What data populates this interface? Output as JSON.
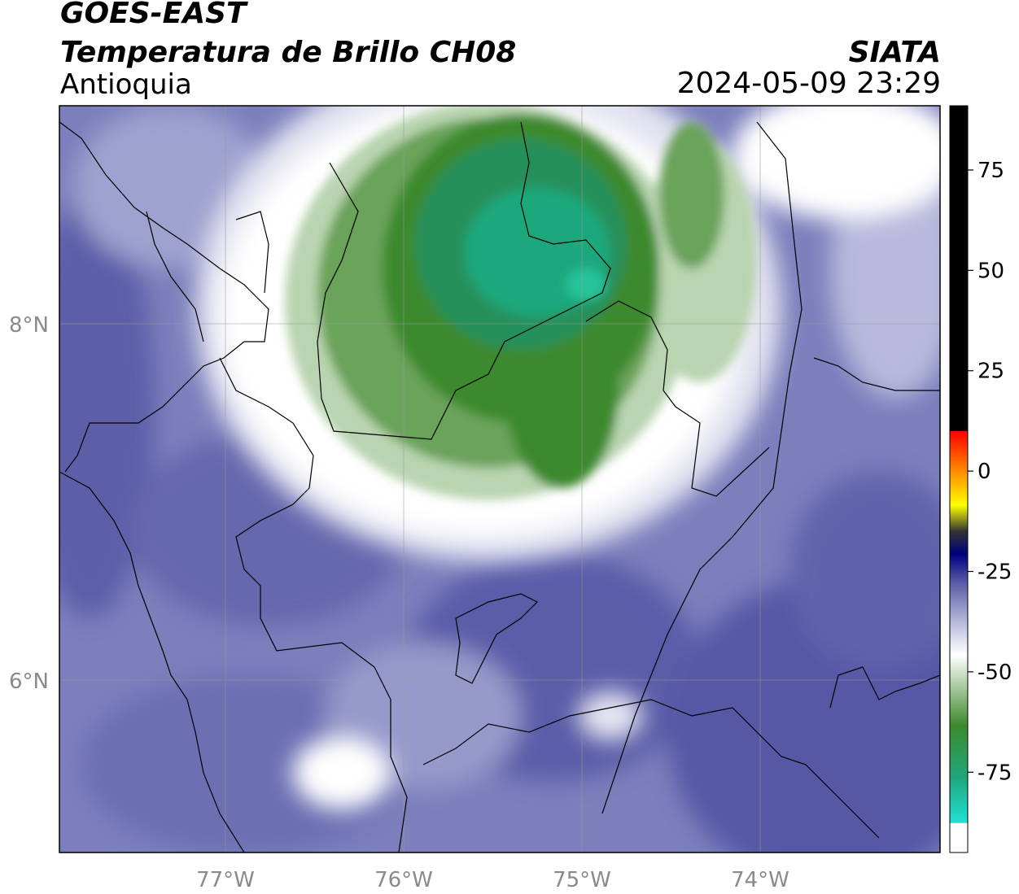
{
  "header": {
    "satellite": "GOES-EAST",
    "product": "Temperatura de Brillo CH08",
    "region": "Antioquia",
    "organization": "SIATA",
    "timestamp": "2024-05-09 23:29"
  },
  "map": {
    "lon_range": [
      -77.95,
      -73.05
    ],
    "lat_range": [
      5.05,
      9.25
    ],
    "lon_ticks": [
      {
        "value": -77,
        "label": "77°W"
      },
      {
        "value": -76,
        "label": "76°W"
      },
      {
        "value": -75,
        "label": "75°W"
      },
      {
        "value": -74,
        "label": "74°W"
      }
    ],
    "lat_ticks": [
      {
        "value": 8,
        "label": "8°N"
      },
      {
        "value": 6,
        "label": "6°N"
      }
    ],
    "gridlines": true
  },
  "colorbar": {
    "range": [
      -95,
      91
    ],
    "ticks": [
      {
        "value": 75,
        "label": "75"
      },
      {
        "value": 50,
        "label": "50"
      },
      {
        "value": 25,
        "label": "25"
      },
      {
        "value": 0,
        "label": "0"
      },
      {
        "value": -25,
        "label": "-25"
      },
      {
        "value": -50,
        "label": "-50"
      },
      {
        "value": -75,
        "label": "-75"
      }
    ],
    "colors": {
      "hot": "#000000",
      "red": "#ff0000",
      "orange": "#ff8c00",
      "yellow": "#ffff00",
      "dark": "#333333",
      "navy": "#000080",
      "purple": "#5b5ea8",
      "light_purple": "#c6c7e3",
      "white": "#ffffff",
      "light_green": "#b9d4b0",
      "green": "#3c8a2d",
      "teal": "#1fa77c",
      "cyan": "#21e0d6"
    }
  }
}
